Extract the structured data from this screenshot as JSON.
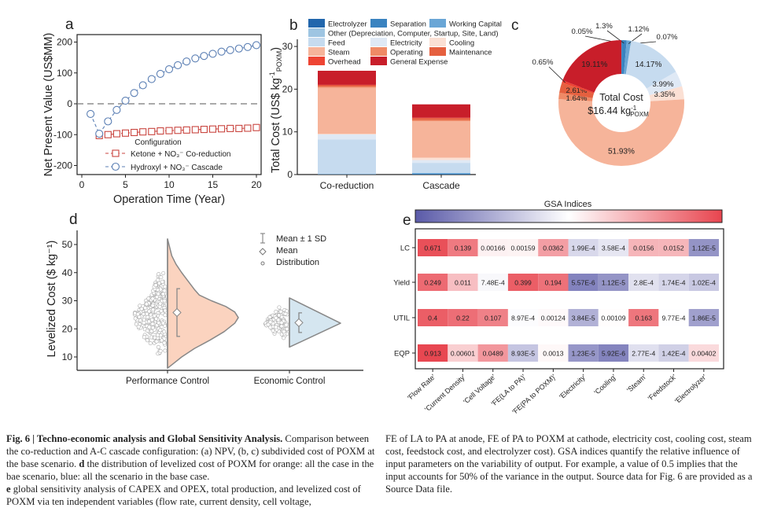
{
  "chart_data": [
    {
      "panel": "a",
      "type": "line",
      "xlabel": "Operation Time (Year)",
      "ylabel": "Net Present Value (US$MM)",
      "xlim": [
        0,
        20
      ],
      "ylim": [
        -230,
        230
      ],
      "xticks": [
        0,
        5,
        10,
        15,
        20
      ],
      "yticks": [
        -200,
        -100,
        0,
        100,
        200
      ],
      "reference_line": 0,
      "legend_title": "Configuration",
      "series": [
        {
          "name": "Ketone + NO₃⁻ Co-reduction",
          "color": "#c9453f",
          "marker": "square",
          "x": [
            2,
            3,
            4,
            5,
            6,
            7,
            8,
            9,
            10,
            11,
            12,
            13,
            14,
            15,
            16,
            17,
            18,
            19,
            20
          ],
          "y": [
            -103,
            -100,
            -97,
            -95,
            -93,
            -91,
            -90,
            -88,
            -87,
            -86,
            -85,
            -84,
            -83,
            -82,
            -81,
            -80,
            -80,
            -79,
            -77
          ]
        },
        {
          "name": "Hydroxyl + NO₃⁻ Cascade",
          "color": "#5b7fb4",
          "marker": "circle",
          "x": [
            1,
            2,
            3,
            4,
            5,
            6,
            7,
            8,
            9,
            10,
            11,
            12,
            13,
            14,
            15,
            16,
            17,
            18,
            19,
            20
          ],
          "y": [
            -33,
            -97,
            -57,
            -20,
            10,
            35,
            60,
            80,
            97,
            112,
            125,
            137,
            147,
            155,
            162,
            169,
            174,
            179,
            184,
            190
          ]
        }
      ]
    },
    {
      "panel": "b",
      "type": "bar",
      "stacked": true,
      "ylabel_main": "Total Cost (US$ kg",
      "ylabel_sup": "-1",
      "ylabel_sub": "POXM",
      "ylabel_end": ")",
      "ylim": [
        0,
        32
      ],
      "yticks": [
        0,
        10,
        20,
        30
      ],
      "categories": [
        "Co-reduction",
        "Cascade"
      ],
      "series": [
        {
          "name": "Electrolyzer",
          "color": "#2166ac",
          "values": [
            0.02,
            0.01
          ]
        },
        {
          "name": "Separation",
          "color": "#3a83c0",
          "values": [
            0.05,
            0.21
          ]
        },
        {
          "name": "Working Capital",
          "color": "#6aa6d6",
          "values": [
            0.02,
            0.18
          ]
        },
        {
          "name": "Other (Depreciation, Computer, Startup, Site, Land)",
          "color": "#9ec5e2",
          "values": [
            0.02,
            0.01
          ]
        },
        {
          "name": "Feed",
          "color": "#c6dbef",
          "values": [
            8.1,
            2.33
          ]
        },
        {
          "name": "Electricity",
          "color": "#dfe9f5",
          "values": [
            1.2,
            0.66
          ]
        },
        {
          "name": "Cooling",
          "color": "#fbe0d4",
          "values": [
            0.1,
            0.55
          ]
        },
        {
          "name": "Steam",
          "color": "#f6b49a",
          "values": [
            10.8,
            8.54
          ]
        },
        {
          "name": "Operating",
          "color": "#ef8a66",
          "values": [
            0.3,
            0.27
          ]
        },
        {
          "name": "Maintenance",
          "color": "#e5603f",
          "values": [
            0.3,
            0.43
          ]
        },
        {
          "name": "Overhead",
          "color": "#ee4433",
          "values": [
            0.1,
            0.11
          ]
        },
        {
          "name": "General Expense",
          "color": "#c81e2a",
          "values": [
            3.3,
            3.14
          ]
        }
      ]
    },
    {
      "panel": "c",
      "type": "pie",
      "donut": true,
      "center_title": "Total Cost",
      "center_value": "$16.44 kg",
      "center_sup": "-1",
      "center_sub": "POXM",
      "slices": [
        {
          "name": "Electrolyzer",
          "value": 0.05,
          "label": "0.05%",
          "color": "#2166ac"
        },
        {
          "name": "Separation",
          "value": 1.3,
          "label": "1.3%",
          "color": "#3a83c0"
        },
        {
          "name": "Working Capital",
          "value": 1.12,
          "label": "1.12%",
          "color": "#6aa6d6"
        },
        {
          "name": "Other",
          "value": 0.07,
          "label": "0.07%",
          "color": "#9ec5e2"
        },
        {
          "name": "Feed",
          "value": 14.17,
          "label": "14.17%",
          "color": "#c6dbef"
        },
        {
          "name": "Electricity",
          "value": 3.99,
          "label": "3.99%",
          "color": "#dfe9f5"
        },
        {
          "name": "Cooling",
          "value": 3.35,
          "label": "3.35%",
          "color": "#fbe0d4"
        },
        {
          "name": "Steam",
          "value": 51.93,
          "label": "51.93%",
          "color": "#f6b49a"
        },
        {
          "name": "Operating",
          "value": 1.64,
          "label": "1.64%",
          "color": "#ef8a66"
        },
        {
          "name": "Maintenance",
          "value": 2.61,
          "label": "2.61%",
          "color": "#e5603f"
        },
        {
          "name": "Overhead",
          "value": 0.65,
          "label": "0.65%",
          "color": "#ee4433"
        },
        {
          "name": "General Expense",
          "value": 19.11,
          "label": "19.11%",
          "color": "#c81e2a"
        }
      ]
    },
    {
      "panel": "d",
      "type": "violin",
      "ylabel": "Levelized Cost ($ kg⁻¹)",
      "ylim": [
        5,
        55
      ],
      "yticks": [
        10,
        20,
        30,
        40,
        50
      ],
      "legend": [
        "Mean ± 1 SD",
        "Mean",
        "Distribution"
      ],
      "groups": [
        {
          "name": "Performance Control",
          "color": "#fbd3bf",
          "mean": 25.8,
          "sd": 8.5,
          "min": 6,
          "max": 52,
          "density": [
            [
              6,
              0
            ],
            [
              8,
              0.1
            ],
            [
              10,
              0.2
            ],
            [
              13,
              0.38
            ],
            [
              16,
              0.6
            ],
            [
              19,
              0.8
            ],
            [
              22,
              0.95
            ],
            [
              24,
              1
            ],
            [
              26,
              0.95
            ],
            [
              28,
              0.82
            ],
            [
              30,
              0.62
            ],
            [
              32,
              0.45
            ],
            [
              34,
              0.38
            ],
            [
              36,
              0.32
            ],
            [
              38,
              0.26
            ],
            [
              40,
              0.2
            ],
            [
              43,
              0.12
            ],
            [
              46,
              0.06
            ],
            [
              50,
              0.02
            ],
            [
              52,
              0
            ]
          ]
        },
        {
          "name": "Economic Control",
          "color": "#d5e6f0",
          "mean": 22.2,
          "sd": 3.5,
          "min": 13.5,
          "max": 31,
          "density": [
            [
              13.5,
              0
            ],
            [
              22,
              1
            ],
            [
              31,
              0
            ]
          ]
        }
      ]
    },
    {
      "panel": "e",
      "type": "heatmap",
      "colorbar_title": "GSA Indices",
      "color_scale": {
        "low": "#5a5aa8",
        "mid": "#ffffff",
        "high": "#e8454f",
        "scale": "log10",
        "range": [
          1e-06,
          1
        ]
      },
      "rows": [
        "LC",
        "Yield",
        "UTIL",
        "EQP"
      ],
      "columns": [
        "'Flow Rate'",
        "'Current Density'",
        "'Cell Voltage'",
        "'FE(LA to PA)'",
        "'FE(PA to POXM)'",
        "'Electricity'",
        "'Cooling'",
        "'Steam'",
        "'Feedstock'",
        "'Electrolyzer'"
      ],
      "values": [
        [
          0.671,
          0.139,
          0.00166,
          0.00159,
          0.0362,
          0.000199,
          0.000358,
          0.0156,
          0.0152,
          1.12e-05
        ],
        [
          0.249,
          0.011,
          0.000748,
          0.399,
          0.194,
          5.57e-06,
          1.12e-05,
          0.00028,
          0.000174,
          0.000102
        ],
        [
          0.4,
          0.22,
          0.107,
          0.000897,
          0.00124,
          3.84e-05,
          0.00109,
          0.163,
          0.000977,
          1.86e-05
        ],
        [
          0.913,
          0.00601,
          0.0489,
          8.93e-05,
          0.0013,
          1.23e-05,
          5.92e-06,
          0.000277,
          0.000142,
          0.00402
        ]
      ],
      "labels": [
        [
          "0.671",
          "0.139",
          "0.00166",
          "0.00159",
          "0.0362",
          "1.99E-4",
          "3.58E-4",
          "0.0156",
          "0.0152",
          "1.12E-5"
        ],
        [
          "0.249",
          "0.011",
          "7.48E-4",
          "0.399",
          "0.194",
          "5.57E-6",
          "1.12E-5",
          "2.8E-4",
          "1.74E-4",
          "1.02E-4"
        ],
        [
          "0.4",
          "0.22",
          "0.107",
          "8.97E-4",
          "0.00124",
          "3.84E-5",
          "0.00109",
          "0.163",
          "9.77E-4",
          "1.86E-5"
        ],
        [
          "0.913",
          "0.00601",
          "0.0489",
          "8.93E-5",
          "0.0013",
          "1.23E-5",
          "5.92E-6",
          "2.77E-4",
          "1.42E-4",
          "0.00402"
        ]
      ]
    }
  ],
  "caption": {
    "title": "Fig. 6 | Techno-economic analysis and Global Sensitivity Analysis.",
    "part1": " Comparison between the co-reduction and A-C cascade configuration: (a) NPV, (b, c) subdivided cost of POXM at the base scenario. ",
    "d_label": "d",
    "part2": " the distribution of levelized cost of POXM for orange: all the case in the bae scenario, blue: all the scenario in the base case.",
    "e_label": "e",
    "part3": " global sensitivity analysis of CAPEX and OPEX, total production, and levelized cost of POXM via ten independent variables (flow rate, current density, cell voltage,",
    "right": "FE of LA to PA at anode, FE of PA to POXM at cathode, electricity cost, cooling cost, steam cost, feedstock cost, and electrolyzer cost). GSA indices quantify the relative influence of input parameters on the variability of output. For example, a value of 0.5 implies that the input accounts for 50% of the variance in the output. Source data for Fig. 6 are provided as a Source Data file."
  }
}
